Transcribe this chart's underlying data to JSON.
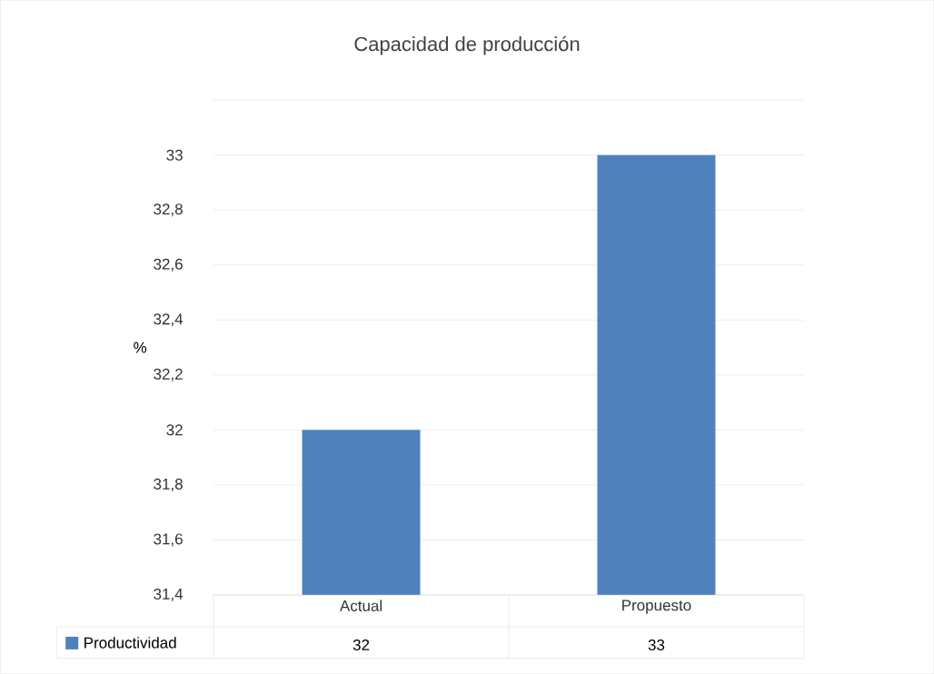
{
  "chart_data": {
    "type": "bar",
    "title": "Capacidad de producción",
    "ylabel": "%",
    "categories": [
      "Actual",
      "Propuesto"
    ],
    "series": [
      {
        "name": "Productividad",
        "color": "#4f81bd",
        "values": [
          32,
          33
        ]
      }
    ],
    "ylim": [
      31.4,
      33.2
    ],
    "yticks": [
      {
        "value": 31.4,
        "label": "31,4"
      },
      {
        "value": 31.6,
        "label": "31,6"
      },
      {
        "value": 31.8,
        "label": "31,8"
      },
      {
        "value": 32,
        "label": "32"
      },
      {
        "value": 32.2,
        "label": "32,2"
      },
      {
        "value": 32.4,
        "label": "32,4"
      },
      {
        "value": 32.6,
        "label": "32,6"
      },
      {
        "value": 32.8,
        "label": "32,8"
      },
      {
        "value": 33,
        "label": "33"
      },
      {
        "value": 33.2,
        "label": null
      }
    ],
    "grid": "y",
    "legend": "bottom",
    "data_labels": true
  }
}
